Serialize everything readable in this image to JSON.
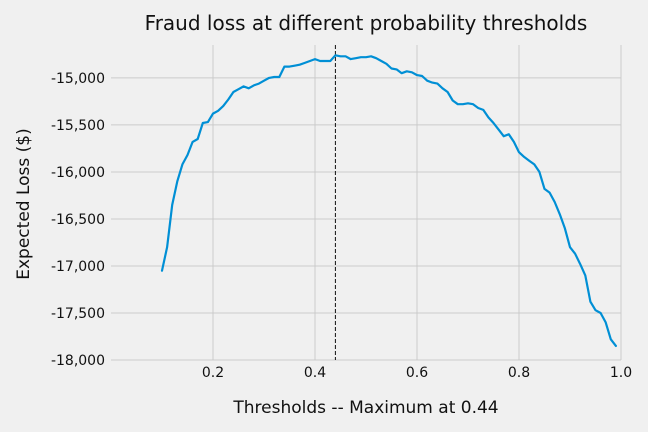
{
  "chart_data": {
    "type": "line",
    "title": "Fraud loss at different probability thresholds",
    "xlabel": "Thresholds -- Maximum at 0.44",
    "ylabel": "Expected Loss ($)",
    "xlim": [
      0.0,
      1.0
    ],
    "ylim": [
      -18000,
      -14650
    ],
    "x_ticks": [
      0.2,
      0.4,
      0.6,
      0.8,
      1.0
    ],
    "x_tick_labels": [
      "0.2",
      "0.4",
      "0.6",
      "0.8",
      "1.0"
    ],
    "y_ticks": [
      -18000,
      -17500,
      -17000,
      -16500,
      -16000,
      -15500,
      -15000
    ],
    "y_tick_labels": [
      "-18,000",
      "-17,500",
      "-17,000",
      "-16,500",
      "-16,000",
      "-15,500",
      "-15,000"
    ],
    "grid": true,
    "series": [
      {
        "color": "#008fd5",
        "x": [
          0.1,
          0.11,
          0.12,
          0.13,
          0.14,
          0.15,
          0.16,
          0.17,
          0.18,
          0.19,
          0.2,
          0.21,
          0.22,
          0.23,
          0.24,
          0.25,
          0.26,
          0.27,
          0.28,
          0.29,
          0.3,
          0.31,
          0.32,
          0.33,
          0.34,
          0.35,
          0.36,
          0.37,
          0.38,
          0.39,
          0.4,
          0.41,
          0.42,
          0.43,
          0.44,
          0.45,
          0.46,
          0.47,
          0.48,
          0.49,
          0.5,
          0.51,
          0.52,
          0.53,
          0.54,
          0.55,
          0.56,
          0.57,
          0.58,
          0.59,
          0.6,
          0.61,
          0.62,
          0.63,
          0.64,
          0.65,
          0.66,
          0.67,
          0.68,
          0.69,
          0.7,
          0.71,
          0.72,
          0.73,
          0.74,
          0.75,
          0.76,
          0.77,
          0.78,
          0.79,
          0.8,
          0.81,
          0.82,
          0.83,
          0.84,
          0.85,
          0.86,
          0.87,
          0.88,
          0.89,
          0.9,
          0.91,
          0.92,
          0.93,
          0.94,
          0.95,
          0.96,
          0.97,
          0.98,
          0.99
        ],
        "values": [
          -17050,
          -16800,
          -16350,
          -16100,
          -15920,
          -15820,
          -15680,
          -15650,
          -15480,
          -15470,
          -15380,
          -15350,
          -15300,
          -15230,
          -15150,
          -15120,
          -15090,
          -15110,
          -15080,
          -15060,
          -15030,
          -15000,
          -14990,
          -14990,
          -14880,
          -14880,
          -14870,
          -14860,
          -14840,
          -14820,
          -14800,
          -14820,
          -14820,
          -14820,
          -14760,
          -14770,
          -14770,
          -14800,
          -14790,
          -14780,
          -14780,
          -14770,
          -14790,
          -14820,
          -14850,
          -14900,
          -14910,
          -14950,
          -14930,
          -14940,
          -14970,
          -14980,
          -15030,
          -15050,
          -15060,
          -15110,
          -15150,
          -15240,
          -15280,
          -15280,
          -15270,
          -15280,
          -15320,
          -15340,
          -15420,
          -15480,
          -15550,
          -15620,
          -15600,
          -15680,
          -15790,
          -15840,
          -15880,
          -15920,
          -16000,
          -16180,
          -16220,
          -16320,
          -16450,
          -16600,
          -16800,
          -16870,
          -16980,
          -17100,
          -17380,
          -17470,
          -17500,
          -17600,
          -17780,
          -17850
        ]
      }
    ],
    "vline": {
      "x": 0.44,
      "color": "#111111"
    }
  }
}
